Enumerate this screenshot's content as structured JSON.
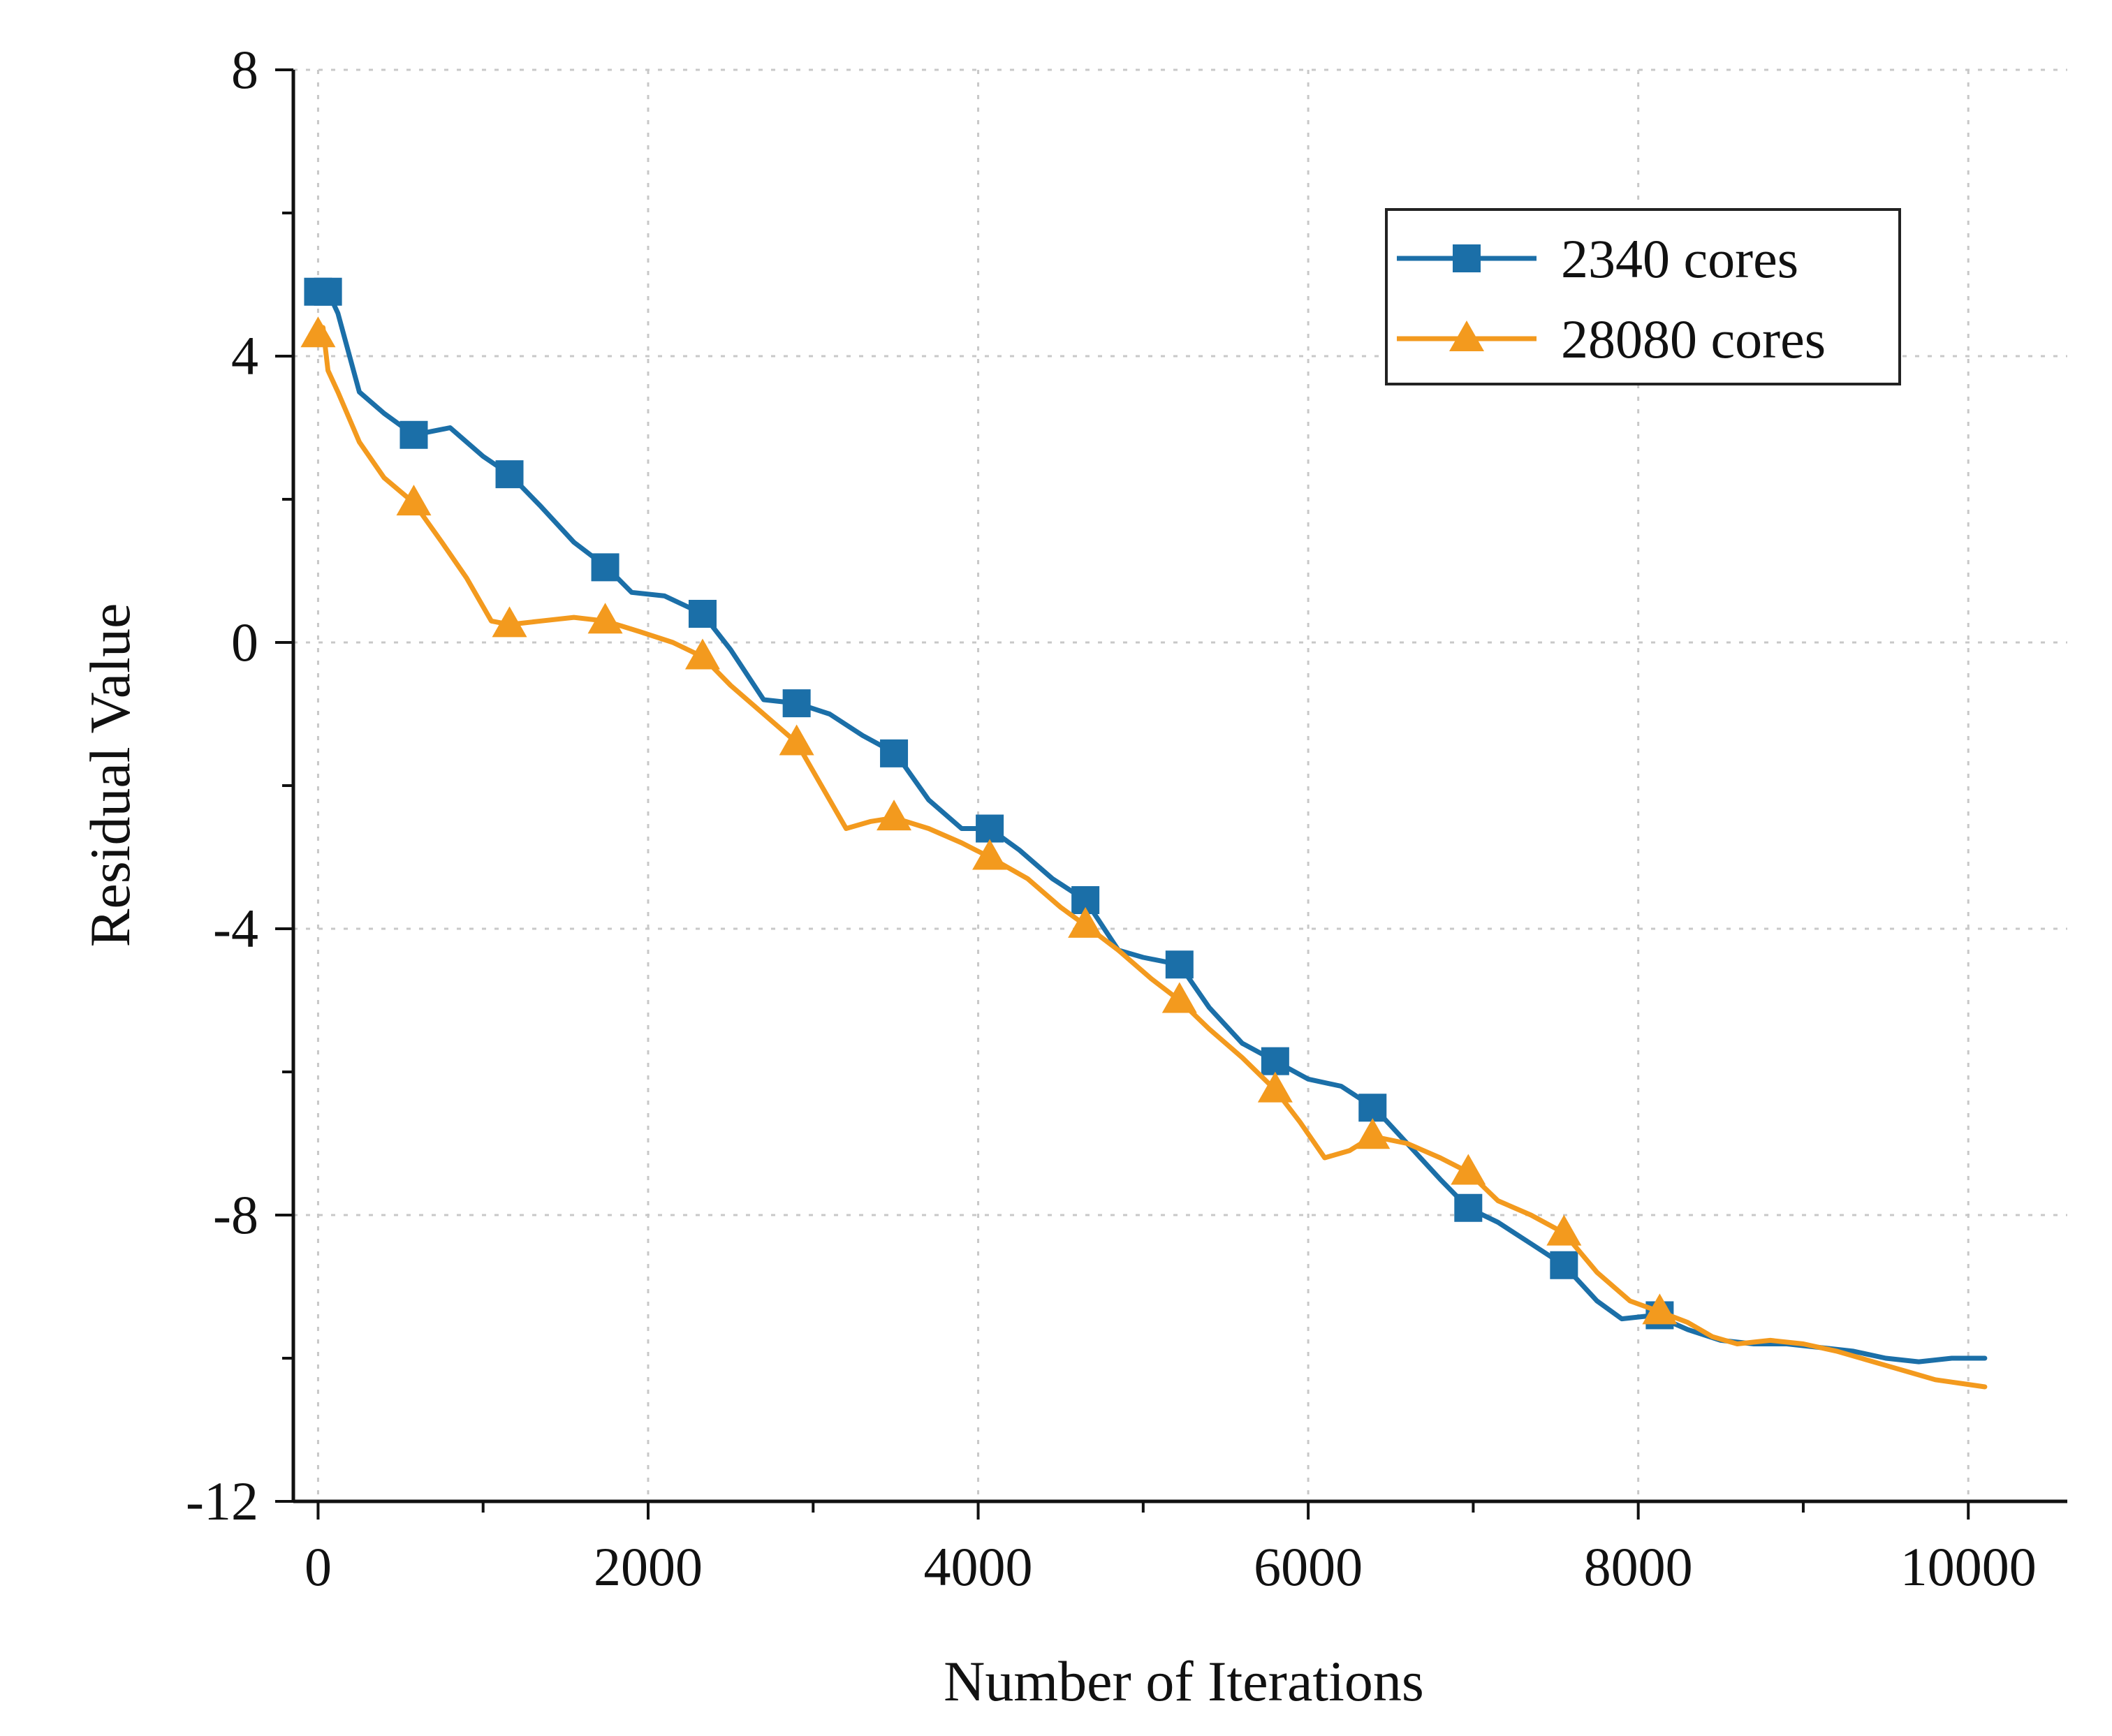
{
  "chart_data": {
    "type": "line",
    "title": "",
    "xlabel": "Number of Iterations",
    "ylabel": "Residual Value",
    "xlim": [
      -150,
      10600
    ],
    "ylim": [
      -12,
      8
    ],
    "xticks": [
      0,
      2000,
      4000,
      6000,
      8000,
      10000
    ],
    "xtick_labels": [
      "0",
      "2000",
      "4000",
      "6000",
      "8000",
      "10000"
    ],
    "yticks": [
      8,
      4,
      0,
      -4,
      -8,
      -12
    ],
    "ytick_labels": [
      "8",
      "4",
      "0",
      "-4",
      "-8",
      "-12"
    ],
    "grid": true,
    "legend_position": "top-right",
    "series": [
      {
        "name": "2340 cores",
        "color": "#1b6fa8",
        "marker": "square",
        "x": [
          0,
          60,
          120,
          250,
          400,
          580,
          800,
          1000,
          1160,
          1350,
          1550,
          1750,
          1900,
          2100,
          2330,
          2500,
          2700,
          2900,
          3100,
          3300,
          3500,
          3700,
          3900,
          4070,
          4250,
          4450,
          4650,
          4850,
          5000,
          5220,
          5400,
          5600,
          5800,
          6000,
          6200,
          6400,
          6600,
          6800,
          6970,
          7150,
          7350,
          7550,
          7750,
          7900,
          8100,
          8300,
          8500,
          8700,
          8900,
          9100,
          9300,
          9500,
          9700,
          9900,
          10100
        ],
        "y": [
          4.9,
          4.9,
          4.6,
          3.5,
          3.2,
          2.9,
          3.0,
          2.6,
          2.35,
          1.9,
          1.4,
          1.05,
          0.7,
          0.65,
          0.4,
          -0.1,
          -0.8,
          -0.85,
          -1.0,
          -1.3,
          -1.55,
          -2.2,
          -2.6,
          -2.6,
          -2.9,
          -3.3,
          -3.6,
          -4.3,
          -4.4,
          -4.5,
          -5.1,
          -5.6,
          -5.85,
          -6.1,
          -6.2,
          -6.5,
          -7.0,
          -7.5,
          -7.9,
          -8.1,
          -8.4,
          -8.7,
          -9.2,
          -9.45,
          -9.4,
          -9.6,
          -9.75,
          -9.8,
          -9.8,
          -9.85,
          -9.9,
          -10.0,
          -10.05,
          -10.0,
          -10.0
        ],
        "markers_x": [
          0,
          60,
          580,
          1160,
          1740,
          2330,
          2900,
          3490,
          4070,
          4650,
          5220,
          5800,
          6390,
          6970,
          7550,
          8130
        ],
        "markers_y": [
          4.9,
          4.9,
          2.9,
          2.35,
          1.05,
          0.4,
          -0.85,
          -1.55,
          -2.6,
          -3.6,
          -4.5,
          -5.85,
          -6.5,
          -7.9,
          -8.7,
          -9.4
        ]
      },
      {
        "name": "28080 cores",
        "color": "#f39a1e",
        "marker": "triangle",
        "x": [
          0,
          30,
          60,
          120,
          250,
          400,
          580,
          750,
          900,
          1050,
          1160,
          1350,
          1550,
          1740,
          1950,
          2150,
          2330,
          2500,
          2700,
          2900,
          3050,
          3200,
          3350,
          3490,
          3700,
          3900,
          4070,
          4300,
          4500,
          4650,
          4850,
          5050,
          5220,
          5400,
          5600,
          5800,
          5950,
          6100,
          6250,
          6390,
          6600,
          6800,
          6970,
          7150,
          7350,
          7550,
          7750,
          7950,
          8130,
          8300,
          8450,
          8600,
          8800,
          9000,
          9200,
          9350,
          9500,
          9650,
          9800,
          9950,
          10100
        ],
        "y": [
          4.3,
          4.4,
          3.8,
          3.5,
          2.8,
          2.3,
          1.95,
          1.4,
          0.9,
          0.3,
          0.25,
          0.3,
          0.35,
          0.3,
          0.15,
          0.0,
          -0.2,
          -0.6,
          -1.0,
          -1.4,
          -2.0,
          -2.6,
          -2.5,
          -2.45,
          -2.6,
          -2.8,
          -3.0,
          -3.3,
          -3.7,
          -3.95,
          -4.3,
          -4.7,
          -5.0,
          -5.4,
          -5.8,
          -6.25,
          -6.7,
          -7.2,
          -7.1,
          -6.9,
          -7.0,
          -7.2,
          -7.4,
          -7.8,
          -8.0,
          -8.25,
          -8.8,
          -9.2,
          -9.35,
          -9.5,
          -9.7,
          -9.8,
          -9.75,
          -9.8,
          -9.9,
          -10.0,
          -10.1,
          -10.2,
          -10.3,
          -10.35,
          -10.4
        ],
        "markers_x": [
          0,
          580,
          1160,
          1740,
          2330,
          2900,
          3490,
          4070,
          4650,
          5220,
          5800,
          6390,
          6970,
          7550,
          8130
        ],
        "markers_y": [
          4.3,
          1.95,
          0.25,
          0.3,
          -0.2,
          -1.4,
          -2.45,
          -3.0,
          -3.95,
          -5.0,
          -6.25,
          -6.9,
          -7.4,
          -8.25,
          -9.35
        ]
      }
    ]
  }
}
